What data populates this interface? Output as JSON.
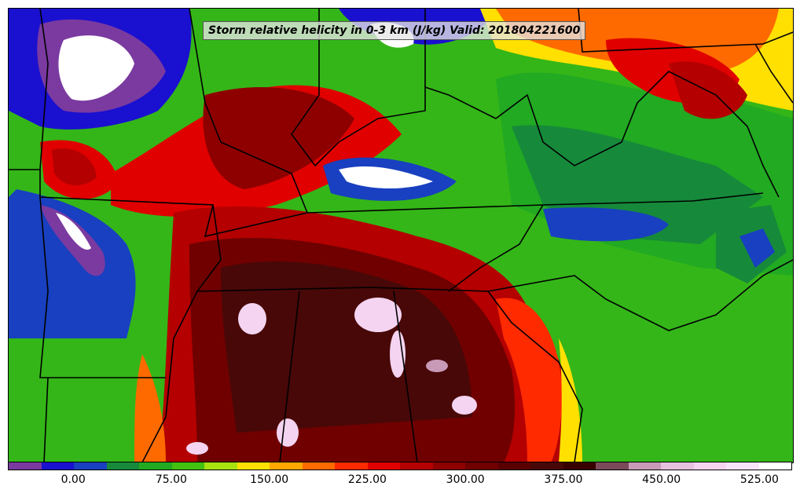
{
  "title": "Storm relative helicity in 0-3 km (J/kg) Valid: 201804221600",
  "colorbar": {
    "colors": [
      "#7a3aa0",
      "#1a10d0",
      "#1840c0",
      "#168a3a",
      "#22aa22",
      "#44c010",
      "#a8e010",
      "#ffe000",
      "#ffa800",
      "#ff6a00",
      "#ff2a00",
      "#e00000",
      "#b40000",
      "#8e0000",
      "#700000",
      "#5a0000",
      "#480808",
      "#380000",
      "#7a4a5a",
      "#c89ab8",
      "#e8c0e0",
      "#f4d4f0",
      "#f8e4f8",
      "#ffffff"
    ],
    "labels": [
      "0.00",
      "75.00",
      "150.00",
      "225.00",
      "300.00",
      "375.00",
      "450.00",
      "525.00"
    ]
  },
  "icons": {
    "state_borders": "map-state-borders",
    "coastline": "map-coastline"
  }
}
